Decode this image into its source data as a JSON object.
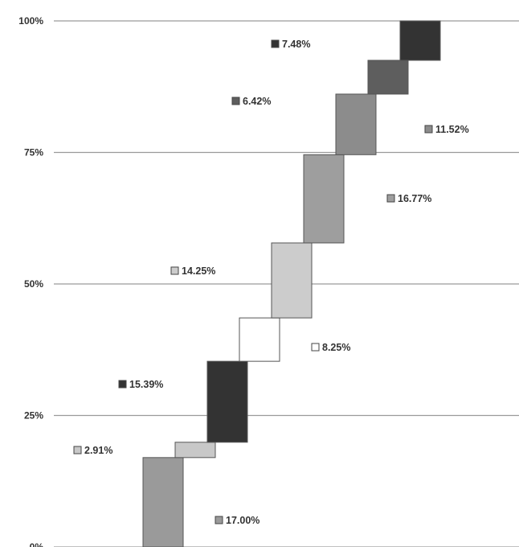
{
  "chart_data": {
    "type": "bar",
    "subtype": "waterfall",
    "title": "",
    "xlabel": "",
    "ylabel": "",
    "ylim": [
      0,
      100
    ],
    "y_ticks": [
      "0%",
      "25%",
      "50%",
      "75%",
      "100%"
    ],
    "grid": true,
    "segments": [
      {
        "label": "17.00%",
        "start": 0.0,
        "end": 17.0,
        "color": "#9a9a9a"
      },
      {
        "label": "2.91%",
        "start": 17.0,
        "end": 19.91,
        "color": "#c8c8c8"
      },
      {
        "label": "15.39%",
        "start": 19.91,
        "end": 35.3,
        "color": "#333333"
      },
      {
        "label": "8.25%",
        "start": 35.3,
        "end": 43.55,
        "color": "#ffffff"
      },
      {
        "label": "14.25%",
        "start": 43.55,
        "end": 57.8,
        "color": "#cccccc"
      },
      {
        "label": "16.77%",
        "start": 57.8,
        "end": 74.57,
        "color": "#9e9e9e"
      },
      {
        "label": "11.52%",
        "start": 74.57,
        "end": 86.09,
        "color": "#8c8c8c"
      },
      {
        "label": "6.42%",
        "start": 86.09,
        "end": 92.51,
        "color": "#5e5e5e"
      },
      {
        "label": "7.48%",
        "start": 92.51,
        "end": 99.99,
        "color": "#333333"
      }
    ]
  }
}
